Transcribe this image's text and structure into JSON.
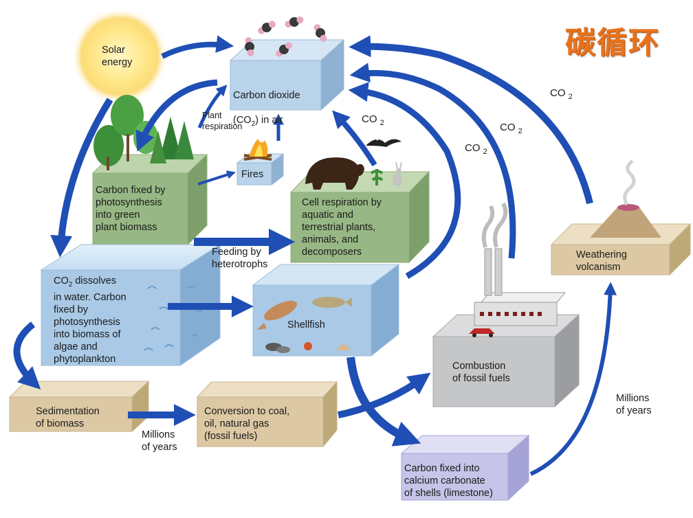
{
  "title": "碳循环",
  "colors": {
    "arrow": "#1f4fb5",
    "air_box": "#b9d3ea",
    "green_box": "#97b884",
    "water_box": "#a9c9e6",
    "tan_box": "#dcc9a4",
    "gray_box": "#c5c6c8",
    "purple_box": "#c6c4e8",
    "title": "#e8731d"
  },
  "labels": {
    "solar_energy": "Solar\nenergy",
    "co2_air_line1": "Carbon dioxide",
    "co2_air_line2_pre": "(CO",
    "co2_air_line2_sub": "2",
    "co2_air_line2_post": ") in air",
    "plant_respiration": "Plant\nrespiration",
    "fires": "Fires",
    "photosynthesis_plants": "Carbon fixed by\nphotosynthesis\ninto green\nplant biomass",
    "cell_respiration": "Cell respiration by\naquatic and\nterrestrial plants,\nanimals, and\ndecomposers",
    "feeding": "Feeding by\nheterotrophs",
    "water_pre": "CO",
    "water_sub": "2",
    "water_post": " dissolves\nin water. Carbon\nfixed by\nphotosynthesis\ninto biomass of\nalgae and\nphytoplankton",
    "shellfish": "Shellfish",
    "sedimentation": "Sedimentation\nof biomass",
    "millions_years_1": "Millions\nof years",
    "conversion": "Conversion to coal,\noil, natural gas\n(fossil fuels)",
    "combustion": "Combustion\nof fossil fuels",
    "weathering": "Weathering\nvolcanism",
    "millions_years_2": "Millions\nof years",
    "limestone": "Carbon fixed into\ncalcium carbonate\nof shells (limestone)",
    "co2_label": "CO",
    "co2_sub": "2"
  }
}
